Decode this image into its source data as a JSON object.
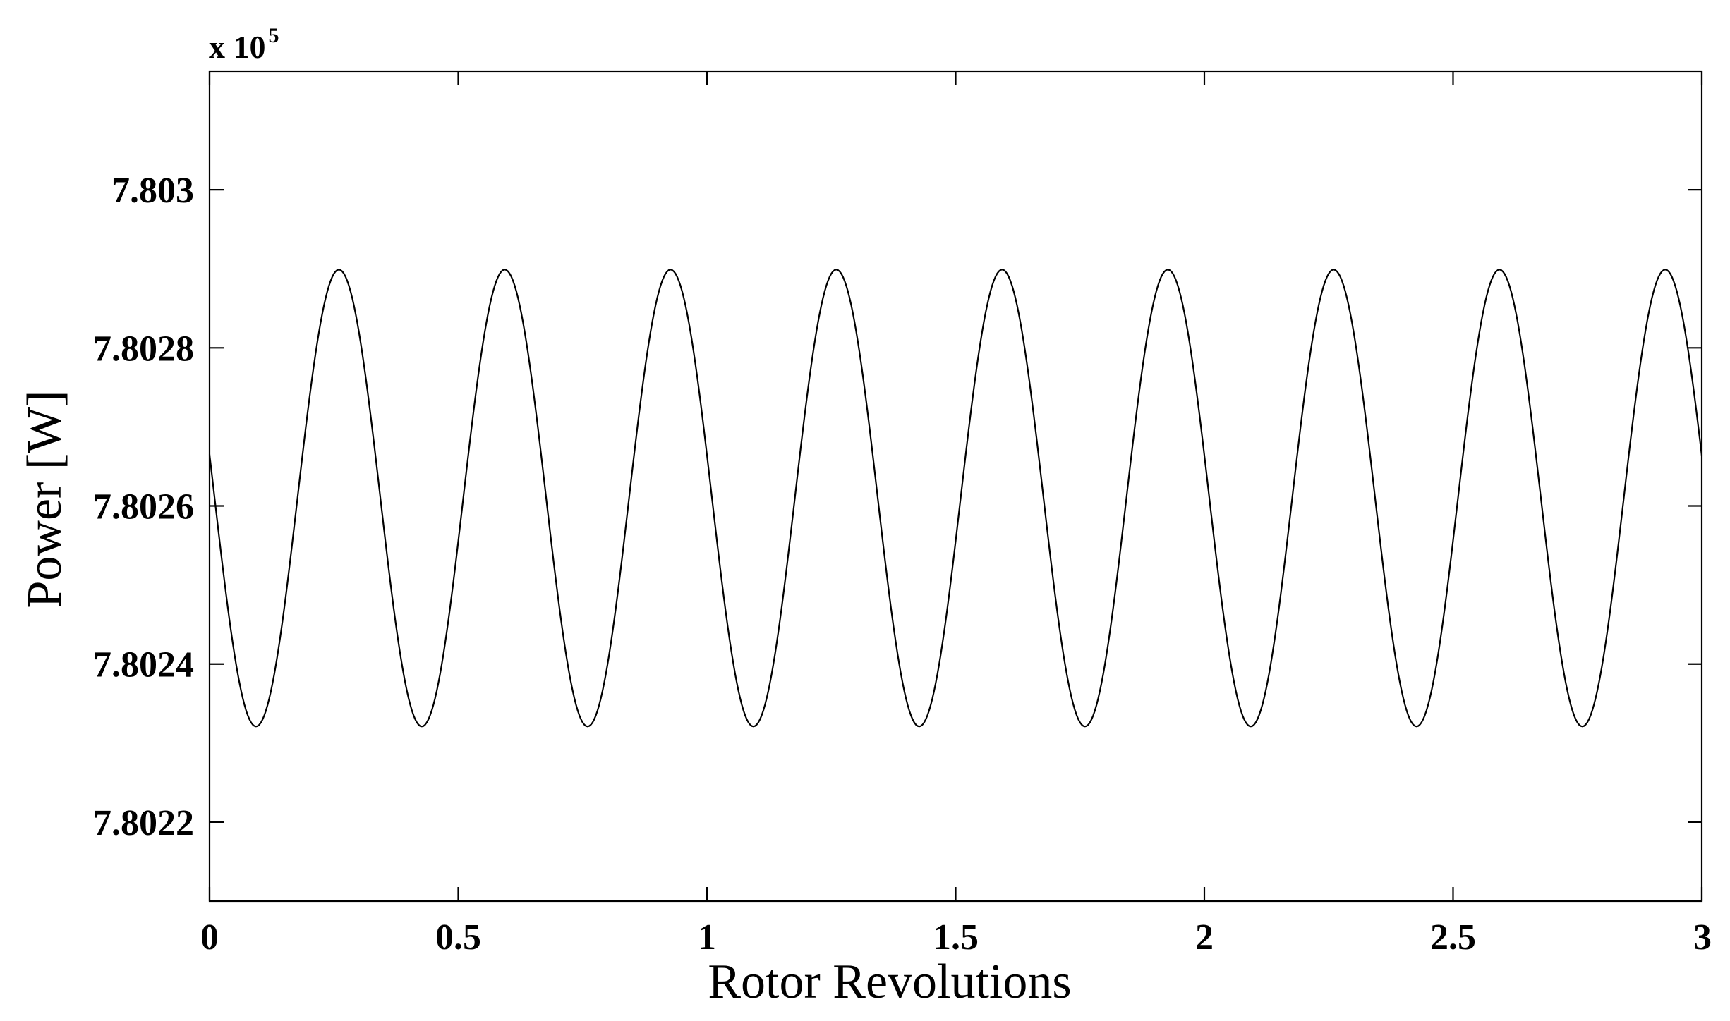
{
  "chart_data": {
    "type": "line",
    "xlabel": "Rotor Revolutions",
    "ylabel": "Power [W]",
    "y_multiplier": {
      "base": "x 10",
      "exponent": "5"
    },
    "xlim": [
      0,
      3
    ],
    "ylim": [
      7.8021,
      7.80315
    ],
    "x_ticks": [
      0,
      0.5,
      1,
      1.5,
      2,
      2.5,
      3
    ],
    "x_tick_labels": [
      "0",
      "0.5",
      "1",
      "1.5",
      "2",
      "2.5",
      "3"
    ],
    "y_ticks": [
      7.8022,
      7.8024,
      7.8026,
      7.8028,
      7.803
    ],
    "y_tick_labels": [
      "7.8022",
      "7.8024",
      "7.8026",
      "7.8028",
      "7.803"
    ],
    "grid": false,
    "line_color": "#000000",
    "series": [
      {
        "waveform": "sinusoid",
        "mean": 7.80261,
        "amplitude": 0.000289,
        "period": 0.3333,
        "phase_rad": 2.95,
        "samples": 900
      }
    ]
  }
}
